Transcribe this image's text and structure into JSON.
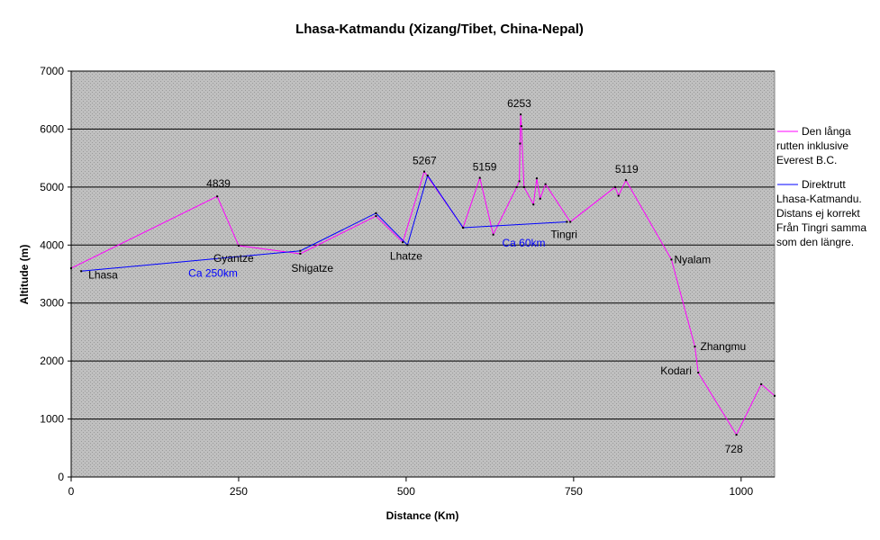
{
  "chart_data": {
    "type": "line",
    "title": "Lhasa-Katmandu (Xizang/Tibet, China-Nepal)",
    "xlabel": "Distance (Km)",
    "ylabel": "Altitude (m)",
    "xlim": [
      0,
      1050
    ],
    "ylim": [
      0,
      7000
    ],
    "xticks": [
      0,
      250,
      500,
      750,
      1000
    ],
    "xtick_labels": [
      "0",
      "250",
      "500",
      "750",
      "1000"
    ],
    "yticks": [
      0,
      1000,
      2000,
      3000,
      4000,
      5000,
      6000,
      7000
    ],
    "ytick_labels": [
      "0",
      "1000",
      "2000",
      "3000",
      "4000",
      "5000",
      "6000",
      "7000"
    ],
    "grid": "horizontal",
    "background": "gray-dotted",
    "legend_position": "right",
    "series": [
      {
        "name": "Den långa rutten inklusive Everest B.C.",
        "color": "#ff00ff",
        "x": [
          0,
          218,
          250,
          342,
          455,
          495,
          527,
          585,
          610,
          630,
          665,
          669,
          670,
          671,
          672,
          676,
          690,
          695,
          700,
          708,
          745,
          812,
          817,
          828,
          896,
          931,
          936,
          993,
          1030,
          1050
        ],
        "y": [
          3600,
          4839,
          3990,
          3850,
          4500,
          4050,
          5267,
          4300,
          5159,
          4180,
          5000,
          5100,
          5750,
          6253,
          6050,
          5000,
          4700,
          5150,
          4800,
          5050,
          4400,
          5000,
          4850,
          5119,
          3750,
          2250,
          1800,
          728,
          1600,
          1400
        ]
      },
      {
        "name": "Direktrutt Lhasa-Katmandu. Distans ej korrekt Från Tingri samma som den längre.",
        "color": "#0000ff",
        "x": [
          15,
          342,
          455,
          502,
          532,
          585,
          740
        ],
        "y": [
          3550,
          3900,
          4550,
          4000,
          5200,
          4300,
          4400
        ]
      }
    ],
    "annotations": [
      {
        "text": "Lhasa",
        "x": 15,
        "y": 3550,
        "dx": 8,
        "dy": 8,
        "color": "#000000"
      },
      {
        "text": "4839",
        "x": 218,
        "y": 4839,
        "dx": -12,
        "dy": -10,
        "color": "#000000"
      },
      {
        "text": "Gyantze",
        "x": 250,
        "y": 3990,
        "dx": -28,
        "dy": 18,
        "color": "#000000"
      },
      {
        "text": "Shigatze",
        "x": 342,
        "y": 3850,
        "dx": -10,
        "dy": 20,
        "color": "#000000"
      },
      {
        "text": "Lhatze",
        "x": 500,
        "y": 4000,
        "dx": -18,
        "dy": 16,
        "color": "#000000"
      },
      {
        "text": "5267",
        "x": 527,
        "y": 5267,
        "dx": -13,
        "dy": -8,
        "color": "#000000"
      },
      {
        "text": "5159",
        "x": 610,
        "y": 5159,
        "dx": -8,
        "dy": -8,
        "color": "#000000"
      },
      {
        "text": "6253",
        "x": 671,
        "y": 6253,
        "dx": -15,
        "dy": -8,
        "color": "#000000"
      },
      {
        "text": "Ca 60km",
        "x": 650,
        "y": 4050,
        "dx": -5,
        "dy": 5,
        "color": "#0000ff"
      },
      {
        "text": "Tingri",
        "x": 740,
        "y": 4400,
        "dx": -18,
        "dy": 18,
        "color": "#000000"
      },
      {
        "text": "5119",
        "x": 828,
        "y": 5119,
        "dx": -12,
        "dy": -8,
        "color": "#000000"
      },
      {
        "text": "Nyalam",
        "x": 896,
        "y": 3750,
        "dx": 3,
        "dy": 4,
        "color": "#000000"
      },
      {
        "text": "Zhangmu",
        "x": 931,
        "y": 2250,
        "dx": 6,
        "dy": 4,
        "color": "#000000"
      },
      {
        "text": "Kodari",
        "x": 936,
        "y": 1800,
        "dx": -42,
        "dy": 2,
        "color": "#000000"
      },
      {
        "text": "728",
        "x": 993,
        "y": 728,
        "dx": -13,
        "dy": 20,
        "color": "#000000"
      },
      {
        "text": "Ca 250km",
        "x": 175,
        "y": 3450,
        "dx": 0,
        "dy": 0,
        "color": "#0000ff"
      }
    ]
  }
}
